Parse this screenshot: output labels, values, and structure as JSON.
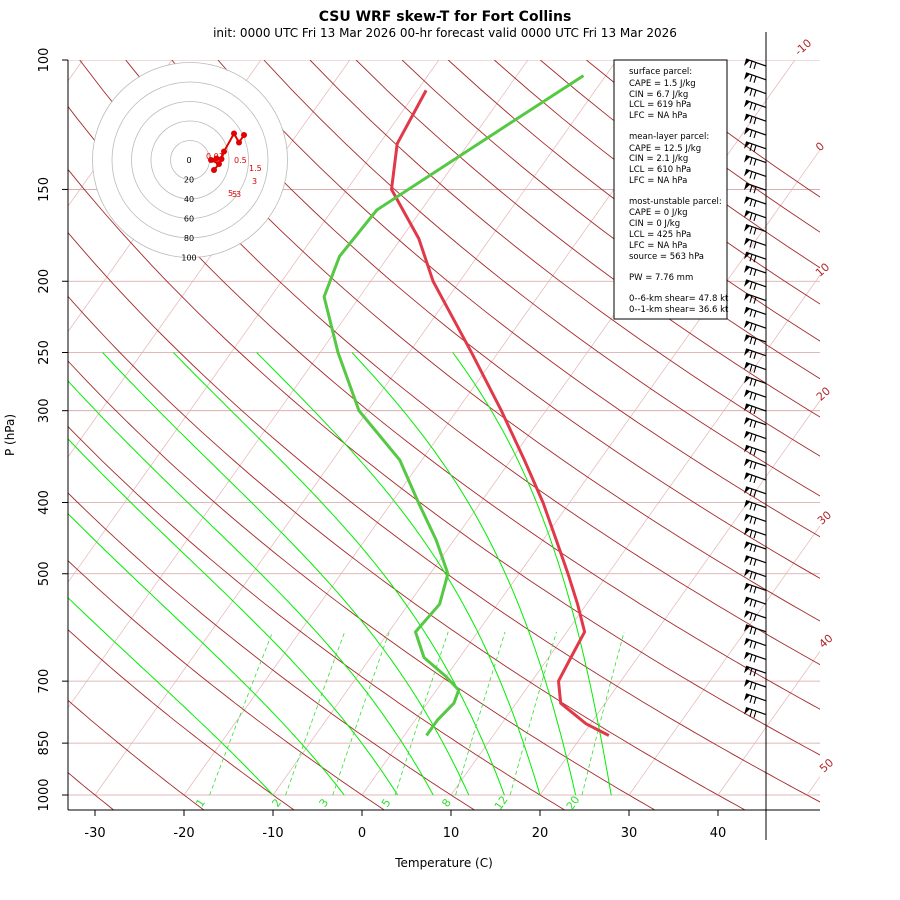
{
  "title": "CSU WRF skew-T for Fort Collins",
  "subtitle": "init: 0000 UTC Fri 13 Mar 2026     00-hr forecast valid 0000 UTC Fri 13 Mar 2026",
  "chart_data": {
    "type": "line",
    "xlabel": "Temperature (C)",
    "ylabel": "P (hPa)",
    "x_ticks": [
      "-30",
      "-20",
      "-10",
      "0",
      "10",
      "20",
      "30",
      "40"
    ],
    "y_ticks": [
      "100",
      "150",
      "200",
      "250",
      "300",
      "400",
      "500",
      "700",
      "850",
      "1000"
    ],
    "skewed_temperature_axis": true,
    "log_pressure_axis": true,
    "isotherm_labels": [
      "-10",
      "0",
      "10",
      "20",
      "30",
      "40",
      "50"
    ],
    "mixing_ratio_labels": [
      "1",
      "2",
      "3",
      "5",
      "8",
      "12",
      "20"
    ],
    "colors": {
      "temperature": "#e03a4a",
      "dewpoint": "#55c844",
      "isotherm": "#a52a2a",
      "mixing_ratio": "#33dd33",
      "dry_adiabat": "#a52a2a",
      "moist_adiabat": "#00ee00",
      "hodograph": "#e00000"
    },
    "series": [
      {
        "name": "temperature",
        "points": [
          [
            830,
            23.0
          ],
          [
            800,
            19.5
          ],
          [
            750,
            15.0
          ],
          [
            700,
            13.0
          ],
          [
            650,
            12.5
          ],
          [
            600,
            12.0
          ],
          [
            550,
            9.0
          ],
          [
            500,
            5.5
          ],
          [
            450,
            1.5
          ],
          [
            400,
            -3.0
          ],
          [
            350,
            -8.5
          ],
          [
            300,
            -15.0
          ],
          [
            250,
            -23.0
          ],
          [
            200,
            -33.0
          ],
          [
            175,
            -38.0
          ],
          [
            150,
            -45.0
          ],
          [
            130,
            -48.0
          ],
          [
            110,
            -49.0
          ]
        ]
      },
      {
        "name": "dewpoint",
        "points": [
          [
            830,
            2.5
          ],
          [
            790,
            2.5
          ],
          [
            750,
            3.0
          ],
          [
            720,
            2.5
          ],
          [
            690,
            0.0
          ],
          [
            650,
            -4.0
          ],
          [
            600,
            -7.0
          ],
          [
            550,
            -6.5
          ],
          [
            500,
            -8.0
          ],
          [
            450,
            -12.0
          ],
          [
            400,
            -17.0
          ],
          [
            350,
            -22.5
          ],
          [
            300,
            -31.0
          ],
          [
            250,
            -38.0
          ],
          [
            210,
            -44.0
          ],
          [
            185,
            -45.5
          ],
          [
            160,
            -45.0
          ],
          [
            120,
            -36.5
          ],
          [
            105,
            -32.5
          ]
        ]
      }
    ],
    "hodograph": {
      "rings": [
        "0",
        "20",
        "40",
        "60",
        "80",
        "100"
      ],
      "points": [
        [
          0.0,
          2.0
        ],
        [
          1.0,
          0.8
        ],
        [
          -0.6,
          0.0
        ],
        [
          0.5,
          -0.3
        ],
        [
          1.5,
          -0.2
        ],
        [
          2.0,
          -1.7
        ],
        [
          4.0,
          -5.3
        ],
        [
          5.0,
          -3.5
        ],
        [
          6.0,
          -5.0
        ]
      ],
      "labels": [
        "0.01",
        "0.5",
        "1.5",
        "3",
        "5",
        "5",
        "3"
      ]
    },
    "wind_barbs": {
      "count": 48,
      "direction": "west-southwest"
    }
  },
  "stats_box": {
    "surface": {
      "header": "surface parcel:",
      "cape": "CAPE = 1.5 J/kg",
      "cin": "CIN = 6.7 J/kg",
      "lcl": "LCL = 619 hPa",
      "lfc": "LFC = NA hPa"
    },
    "mean_layer": {
      "header": "mean-layer parcel:",
      "cape": "CAPE = 12.5 J/kg",
      "cin": "CIN = 2.1 J/kg",
      "lcl": "LCL = 610 hPa",
      "lfc": "LFC = NA hPa"
    },
    "most_unstable": {
      "header": "most-unstable parcel:",
      "cape": "CAPE = 0 J/kg",
      "cin": "CIN = 0 J/kg",
      "lcl": "LCL = 425 hPa",
      "lfc": "LFC = NA hPa",
      "source": "source = 563 hPa"
    },
    "pw": "PW =  7.76 mm",
    "shear6": "0--6-km shear= 47.8 kt",
    "shear1": "0--1-km shear= 36.6 kt"
  }
}
